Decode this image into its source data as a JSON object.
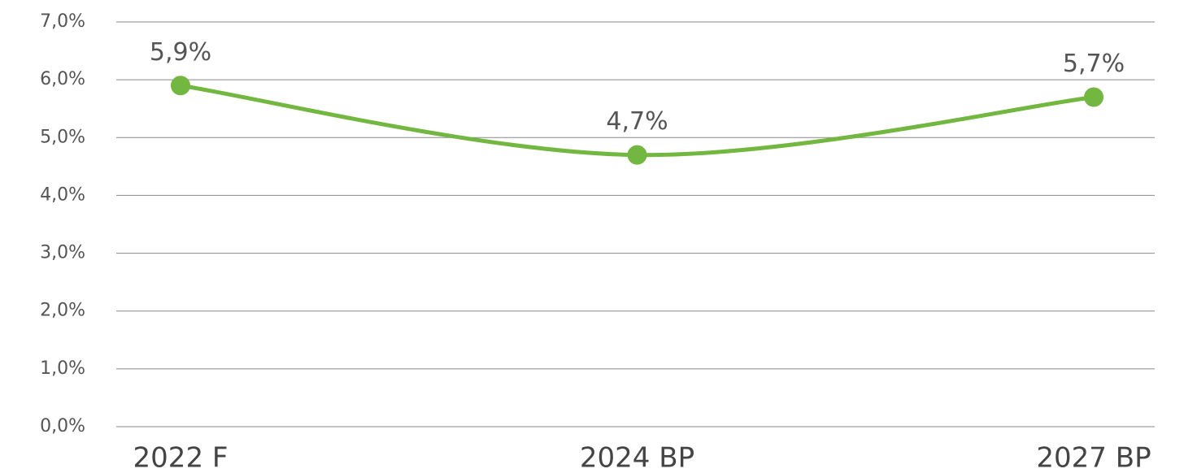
{
  "chart_data": {
    "type": "line",
    "categories": [
      "2022 F",
      "2024 BP",
      "2027 BP"
    ],
    "series": [
      {
        "color": "#72b73f",
        "values": [
          5.9,
          4.7,
          5.7
        ],
        "value_labels": [
          "5,9%",
          "4,7%",
          "5,7%"
        ]
      }
    ],
    "ylim": [
      0,
      7
    ],
    "yticks": [
      {
        "value": 0,
        "label": "0,0%"
      },
      {
        "value": 1,
        "label": "1,0%"
      },
      {
        "value": 2,
        "label": "2,0%"
      },
      {
        "value": 3,
        "label": "3,0%"
      },
      {
        "value": 4,
        "label": "4,0%"
      },
      {
        "value": 5,
        "label": "5,0%"
      },
      {
        "value": 6,
        "label": "6,0%"
      },
      {
        "value": 7,
        "label": "7,0%"
      }
    ],
    "grid": true,
    "smooth": true
  }
}
